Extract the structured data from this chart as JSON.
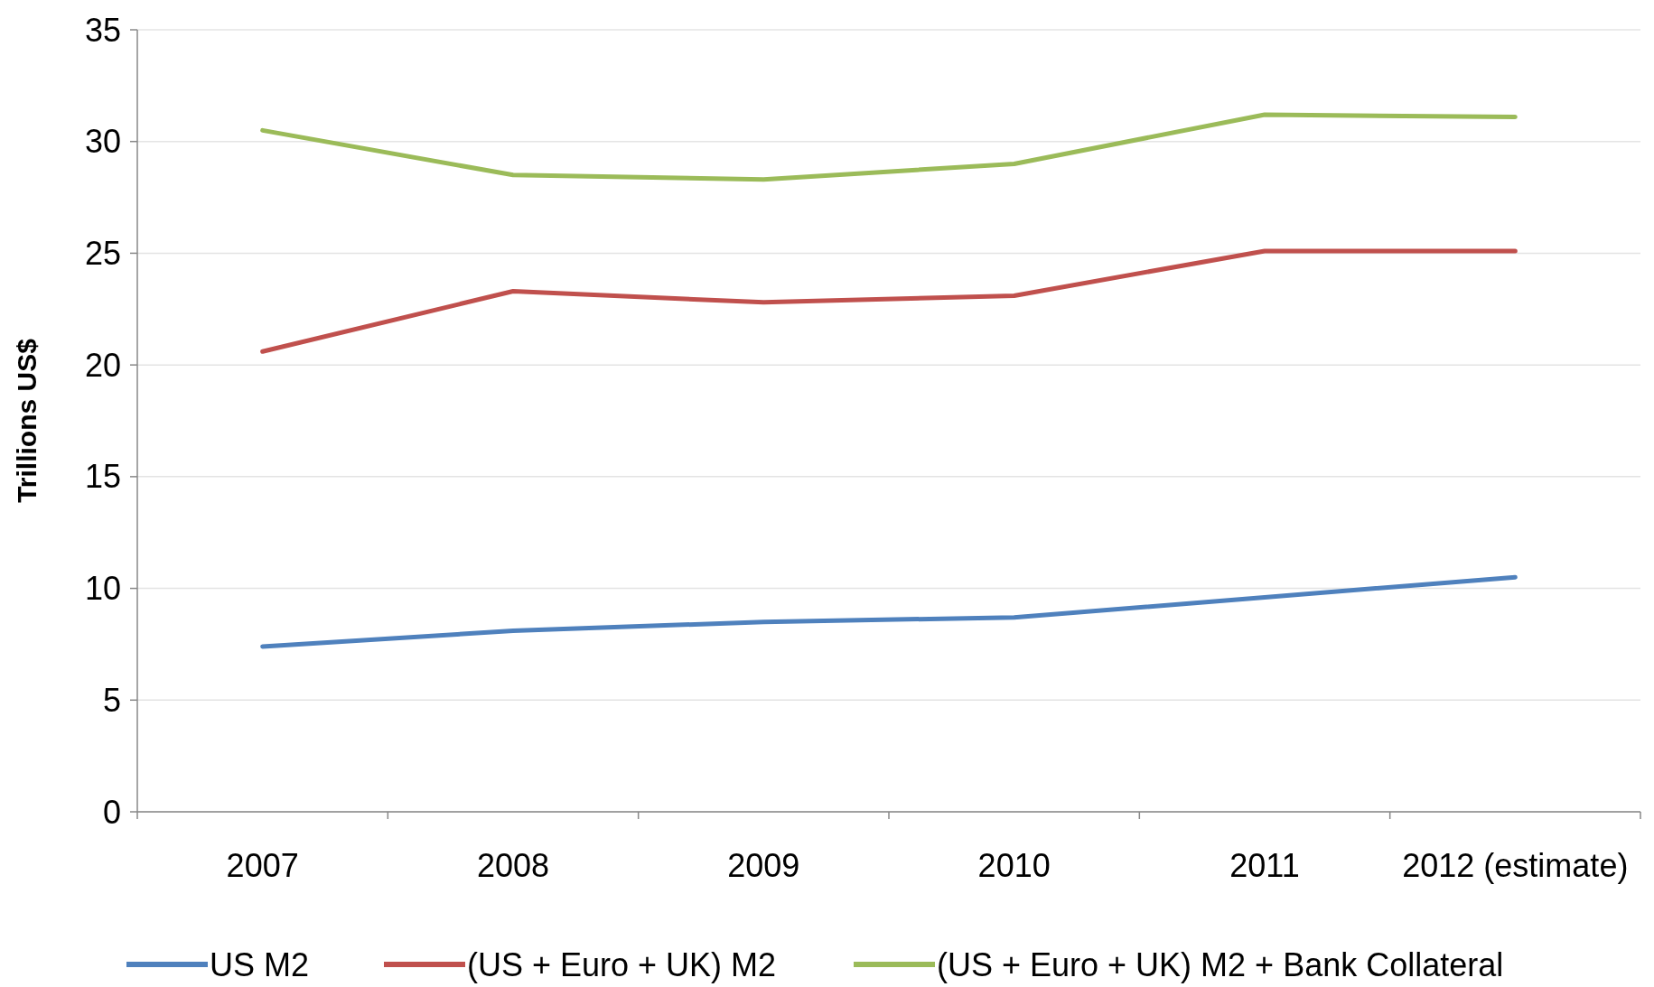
{
  "chart_data": {
    "type": "line",
    "ylabel": "Trillions US$",
    "categories": [
      "2007",
      "2008",
      "2009",
      "2010",
      "2011",
      "2012 (estimate)"
    ],
    "series": [
      {
        "name": "US M2",
        "color": "#4f81bd",
        "values": [
          7.4,
          8.1,
          8.5,
          8.7,
          9.6,
          10.5
        ]
      },
      {
        "name": "(US + Euro + UK) M2",
        "color": "#c0504d",
        "values": [
          20.6,
          23.3,
          22.8,
          23.1,
          25.1,
          25.1
        ]
      },
      {
        "name": "(US + Euro + UK) M2 + Bank Collateral",
        "color": "#9bbb59",
        "values": [
          30.5,
          28.5,
          28.3,
          29.0,
          31.2,
          31.1
        ]
      }
    ],
    "ylim": [
      0,
      35
    ],
    "yticks": [
      0,
      5,
      10,
      15,
      20,
      25,
      30,
      35
    ],
    "grid": "y",
    "legend": "bottom",
    "marker": "none",
    "line_style": "solid"
  }
}
